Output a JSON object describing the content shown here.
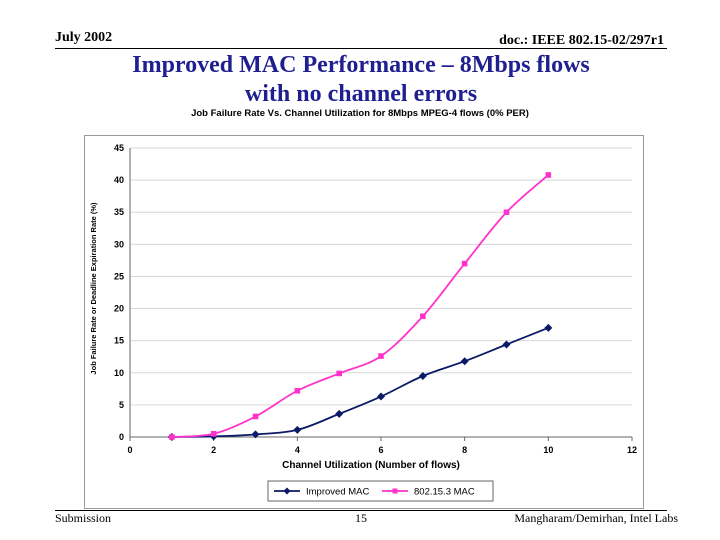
{
  "header": {
    "date": "July 2002",
    "doc": "doc.: IEEE 802.15-02/297r1"
  },
  "slide": {
    "title_line1": "Improved MAC Performance – 8Mbps flows",
    "title_line2": "with no channel errors"
  },
  "footer": {
    "left": "Submission",
    "page": "15",
    "right": "Mangharam/Demirhan, Intel Labs"
  },
  "colors": {
    "series1": "#0b1a66",
    "series2": "#ff33cc",
    "grid": "#d9d9d9"
  },
  "chart_data": {
    "type": "line",
    "title": "Job Failure Rate Vs. Channel Utilization for 8Mbps MPEG-4 flows (0% PER)",
    "xlabel": "Channel Utilization (Number of flows)",
    "ylabel": "Job Failure Rate or Deadline Expiration Rate (%)",
    "xlim": [
      0,
      12
    ],
    "ylim": [
      0,
      45
    ],
    "xticks": [
      "0",
      "2",
      "4",
      "6",
      "8",
      "10",
      "12"
    ],
    "yticks": [
      "0",
      "5",
      "10",
      "15",
      "20",
      "25",
      "30",
      "35",
      "40",
      "45"
    ],
    "grid": "horizontal",
    "legend": "bottom",
    "series": [
      {
        "name": "Improved MAC",
        "color": "#0b1a66",
        "marker": "diamond",
        "x": [
          1,
          2,
          3,
          4,
          5,
          6,
          7,
          8,
          9,
          10
        ],
        "y": [
          0,
          0.1,
          0.4,
          1.1,
          3.6,
          6.3,
          9.5,
          11.8,
          14.4,
          17.0
        ]
      },
      {
        "name": "802.15.3 MAC",
        "color": "#ff33cc",
        "marker": "square",
        "x": [
          1,
          2,
          3,
          4,
          5,
          6,
          7,
          8,
          9,
          10
        ],
        "y": [
          0,
          0.5,
          3.2,
          7.2,
          9.9,
          12.6,
          18.8,
          27.0,
          35.0,
          40.8
        ]
      }
    ]
  }
}
